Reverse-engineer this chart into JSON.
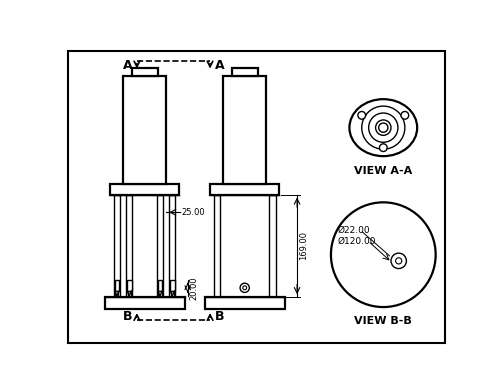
{
  "fig_width": 5.0,
  "fig_height": 3.9,
  "dpi": 100,
  "bg_color": "#ffffff",
  "line_color": "#000000",
  "view_aa_label": "VIEW A-A",
  "view_bb_label": "VIEW B-B",
  "label_A": "A",
  "label_B": "B",
  "dim_25": "25.00",
  "dim_20": "20.00",
  "dim_169": "169.00",
  "dim_d22": "Ø22.00",
  "dim_d120": "Ø120.00"
}
